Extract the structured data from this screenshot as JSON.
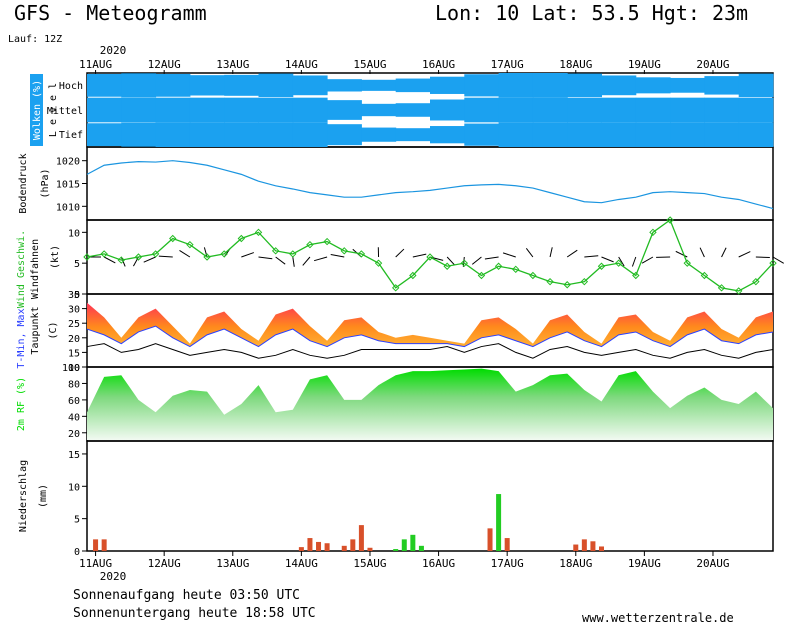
{
  "header": {
    "title": "GFS - Meteogramm",
    "location": "Lon: 10  Lat: 53.5  Hgt: 23m",
    "run": "Lauf: 12Z",
    "year_top": "2020",
    "year_bottom": "2020"
  },
  "footer": {
    "sunrise": "Sonnenaufgang heute 03:50 UTC",
    "sunset": "Sonnenuntergang heute 18:58 UTC",
    "website": "www.wetterzentrale.de"
  },
  "colors": {
    "cloud": "#1ba1f0",
    "pressure": "#1b95e0",
    "wind": "#22bb22",
    "tmax": "#ff3355",
    "tmin": "#2b40ff",
    "dew": "#000000",
    "rh": "#00dd00",
    "precip_red": "#d8502a",
    "precip_green": "#22cc22"
  },
  "chart_data": {
    "type": "meteogram",
    "days": [
      "11AUG",
      "12AUG",
      "13AUG",
      "14AUG",
      "15AUG",
      "16AUG",
      "17AUG",
      "18AUG",
      "19AUG",
      "20AUG"
    ],
    "time_hours_from_11AUG_00UTC": [
      0,
      240
    ],
    "panels": [
      {
        "id": "clouds",
        "label_rotated": "Wolken (%)",
        "levels_label": "L e v e l",
        "levels": [
          "Hoch",
          "Mittel",
          "Tief"
        ],
        "series": [
          {
            "name": "Hoch",
            "x": [
              0,
              12,
              24,
              36,
              48,
              60,
              72,
              84,
              96,
              108,
              120,
              132,
              144,
              156,
              168,
              180,
              192,
              204,
              216,
              228,
              240
            ],
            "values": [
              90,
              95,
              100,
              85,
              80,
              90,
              100,
              60,
              40,
              50,
              60,
              80,
              100,
              100,
              100,
              90,
              70,
              60,
              60,
              90,
              100
            ]
          },
          {
            "name": "Mittel",
            "x": [
              0,
              12,
              24,
              36,
              48,
              60,
              72,
              84,
              96,
              108,
              120,
              132,
              144,
              156,
              168,
              180,
              192,
              204,
              216,
              228,
              240
            ],
            "values": [
              100,
              100,
              100,
              100,
              100,
              100,
              100,
              100,
              60,
              40,
              70,
              100,
              100,
              100,
              100,
              100,
              100,
              100,
              100,
              100,
              100
            ]
          },
          {
            "name": "Tief",
            "x": [
              0,
              12,
              24,
              36,
              48,
              60,
              72,
              84,
              96,
              108,
              120,
              132,
              144,
              156,
              168,
              180,
              192,
              204,
              216,
              228,
              240
            ],
            "values": [
              90,
              95,
              100,
              100,
              100,
              100,
              100,
              100,
              70,
              45,
              60,
              80,
              100,
              100,
              100,
              100,
              100,
              100,
              100,
              100,
              100
            ]
          }
        ]
      },
      {
        "id": "pressure",
        "ylabel": "Bodendruck",
        "units": "(hPa)",
        "ylim": [
          1007,
          1023
        ],
        "ticks": [
          1010,
          1015,
          1020
        ],
        "x": [
          0,
          6,
          12,
          18,
          24,
          30,
          36,
          42,
          48,
          54,
          60,
          66,
          72,
          78,
          84,
          90,
          96,
          102,
          108,
          114,
          120,
          126,
          132,
          138,
          144,
          150,
          156,
          162,
          168,
          174,
          180,
          186,
          192,
          198,
          204,
          210,
          216,
          222,
          228,
          234,
          240
        ],
        "values": [
          1017,
          1019,
          1019.5,
          1019.8,
          1019.7,
          1020,
          1019.6,
          1019,
          1018,
          1017,
          1015.5,
          1014.5,
          1013.8,
          1013,
          1012.5,
          1012,
          1012,
          1012.5,
          1013,
          1013.2,
          1013.5,
          1014,
          1014.5,
          1014.7,
          1014.8,
          1014.5,
          1014,
          1013,
          1012,
          1011,
          1010.8,
          1011.5,
          1012,
          1013,
          1013.2,
          1013,
          1012.8,
          1012,
          1011.5,
          1010.5,
          1009.5
        ]
      },
      {
        "id": "wind",
        "ylabel": "Windfahnen",
        "ylabel2": "Wind Geschwi.",
        "units": "(kt)",
        "ylim": [
          0,
          12
        ],
        "ticks": [
          0,
          5,
          10
        ],
        "x": [
          0,
          6,
          12,
          18,
          24,
          30,
          36,
          42,
          48,
          54,
          60,
          66,
          72,
          78,
          84,
          90,
          96,
          102,
          108,
          114,
          120,
          126,
          132,
          138,
          144,
          150,
          156,
          162,
          168,
          174,
          180,
          186,
          192,
          198,
          204,
          210,
          216,
          222,
          228,
          234,
          240
        ],
        "values": [
          6,
          6.5,
          5.5,
          6,
          6.5,
          9,
          8,
          6,
          6.5,
          9,
          10,
          7,
          6.5,
          8,
          8.5,
          7,
          6.5,
          5,
          1,
          3,
          6,
          4.5,
          5,
          3,
          4.5,
          4,
          3,
          2,
          1.5,
          2,
          4.5,
          5,
          3,
          10,
          12,
          5,
          3,
          1,
          0.5,
          2,
          5
        ]
      },
      {
        "id": "temperature",
        "ylabel": "Taupunkt",
        "ylabel2": "T-Min, Max",
        "units": "(C)",
        "ylim": [
          10,
          35
        ],
        "ticks": [
          10,
          15,
          20,
          25,
          30,
          35
        ],
        "x": [
          0,
          6,
          12,
          18,
          24,
          30,
          36,
          42,
          48,
          54,
          60,
          66,
          72,
          78,
          84,
          90,
          96,
          102,
          108,
          114,
          120,
          126,
          132,
          138,
          144,
          150,
          156,
          162,
          168,
          174,
          180,
          186,
          192,
          198,
          204,
          210,
          216,
          222,
          228,
          234,
          240
        ],
        "series": [
          {
            "name": "T-Max",
            "values": [
              32,
              27,
              20,
              27,
              30,
              24,
              18,
              27,
              29,
              23,
              19,
              28,
              30,
              24,
              19,
              26,
              27,
              22,
              20,
              21,
              20,
              19,
              18,
              26,
              27,
              23,
              18,
              26,
              28,
              22,
              18,
              27,
              28,
              22,
              19,
              27,
              29,
              23,
              20,
              27,
              29
            ]
          },
          {
            "name": "T-Min",
            "values": [
              23,
              21,
              18,
              22,
              24,
              20,
              17,
              21,
              23,
              20,
              17,
              21,
              23,
              19,
              17,
              20,
              21,
              19,
              18,
              18,
              18,
              18,
              17,
              20,
              21,
              19,
              17,
              20,
              22,
              19,
              17,
              21,
              22,
              19,
              17,
              21,
              23,
              19,
              18,
              21,
              22
            ]
          },
          {
            "name": "Taupunkt",
            "values": [
              17,
              18,
              15,
              16,
              18,
              16,
              14,
              15,
              16,
              15,
              13,
              14,
              16,
              14,
              13,
              14,
              16,
              16,
              16,
              16,
              16,
              17,
              15,
              17,
              18,
              15,
              13,
              16,
              17,
              15,
              14,
              15,
              16,
              14,
              13,
              15,
              16,
              14,
              13,
              15,
              16
            ]
          }
        ]
      },
      {
        "id": "humidity",
        "ylabel": "2m RF (%)",
        "ylim": [
          10,
          100
        ],
        "ticks": [
          20,
          40,
          60,
          80,
          100
        ],
        "x": [
          0,
          6,
          12,
          18,
          24,
          30,
          36,
          42,
          48,
          54,
          60,
          66,
          72,
          78,
          84,
          90,
          96,
          102,
          108,
          114,
          120,
          126,
          132,
          138,
          144,
          150,
          156,
          162,
          168,
          174,
          180,
          186,
          192,
          198,
          204,
          210,
          216,
          222,
          228,
          234,
          240
        ],
        "values": [
          45,
          88,
          90,
          60,
          45,
          65,
          72,
          70,
          42,
          55,
          78,
          45,
          48,
          85,
          90,
          60,
          60,
          78,
          90,
          95,
          95,
          96,
          97,
          98,
          95,
          70,
          78,
          90,
          92,
          72,
          58,
          90,
          95,
          70,
          50,
          65,
          75,
          60,
          55,
          70,
          50
        ]
      },
      {
        "id": "precip",
        "ylabel": "Niederschlag",
        "units": "(mm)",
        "ylim": [
          0,
          17
        ],
        "ticks": [
          0,
          5,
          10,
          15
        ],
        "bars": [
          {
            "x": 3,
            "value": 1.8,
            "kind": "red"
          },
          {
            "x": 6,
            "value": 1.8,
            "kind": "red"
          },
          {
            "x": 75,
            "value": 0.6,
            "kind": "red"
          },
          {
            "x": 78,
            "value": 2.0,
            "kind": "red"
          },
          {
            "x": 81,
            "value": 1.4,
            "kind": "red"
          },
          {
            "x": 84,
            "value": 1.2,
            "kind": "red"
          },
          {
            "x": 90,
            "value": 0.8,
            "kind": "red"
          },
          {
            "x": 93,
            "value": 1.8,
            "kind": "red"
          },
          {
            "x": 96,
            "value": 4.0,
            "kind": "red"
          },
          {
            "x": 99,
            "value": 0.5,
            "kind": "red"
          },
          {
            "x": 108,
            "value": 0.3,
            "kind": "green"
          },
          {
            "x": 111,
            "value": 1.8,
            "kind": "green"
          },
          {
            "x": 114,
            "value": 2.5,
            "kind": "green"
          },
          {
            "x": 117,
            "value": 0.8,
            "kind": "green"
          },
          {
            "x": 141,
            "value": 3.5,
            "kind": "red"
          },
          {
            "x": 144,
            "value": 8.8,
            "kind": "green"
          },
          {
            "x": 147,
            "value": 2.0,
            "kind": "red"
          },
          {
            "x": 171,
            "value": 1.0,
            "kind": "red"
          },
          {
            "x": 174,
            "value": 1.8,
            "kind": "red"
          },
          {
            "x": 177,
            "value": 1.5,
            "kind": "red"
          },
          {
            "x": 180,
            "value": 0.7,
            "kind": "red"
          }
        ]
      }
    ]
  }
}
